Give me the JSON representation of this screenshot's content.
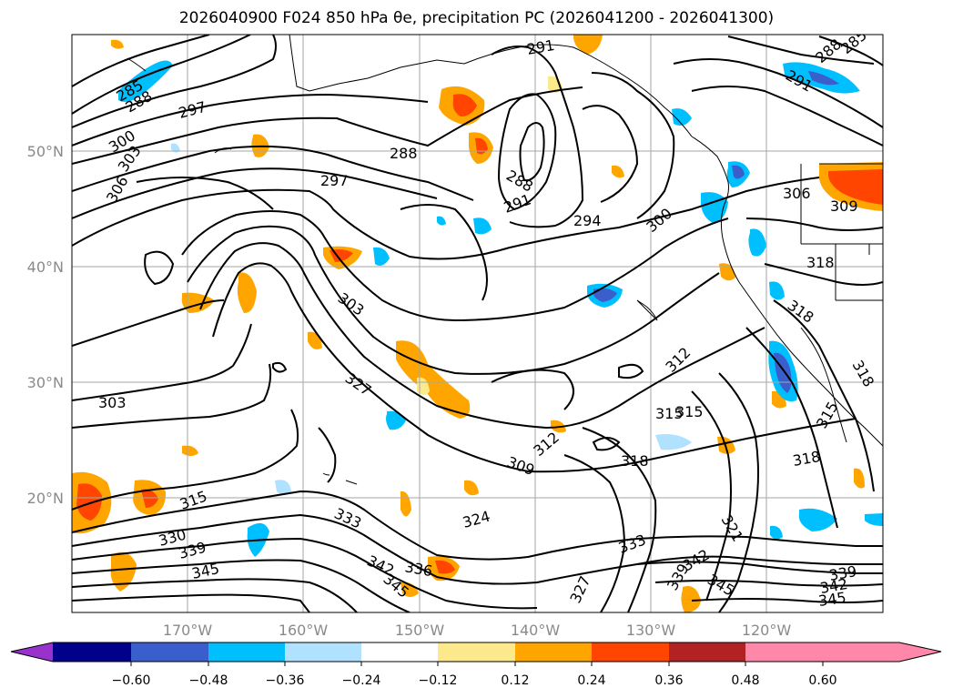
{
  "title": "2026040900 F024 850 hPa θe, precipitation PC (2026041200 - 2026041300)",
  "lat_labels": [
    "50°N",
    "40°N",
    "30°N",
    "20°N"
  ],
  "lon_labels": [
    "170°W",
    "160°W",
    "150°W",
    "140°W",
    "130°W",
    "120°W"
  ],
  "colorbar": {
    "tick_labels": [
      "−0.60",
      "−0.48",
      "−0.36",
      "−0.24",
      "−0.12",
      "0.12",
      "0.24",
      "0.36",
      "0.48",
      "0.60"
    ],
    "colors": [
      "#9932cc",
      "#00008b",
      "#3a5fcd",
      "#00bfff",
      "#b0e2ff",
      "#ffffff",
      "#fce98c",
      "#ffa500",
      "#ff4500",
      "#b22222",
      "#ff88aa"
    ]
  },
  "contour_labels": [
    "285",
    "288",
    "291",
    "294",
    "297",
    "300",
    "303",
    "306",
    "309",
    "312",
    "315",
    "318",
    "321",
    "324",
    "327",
    "330",
    "333",
    "336",
    "339",
    "342",
    "345"
  ]
}
